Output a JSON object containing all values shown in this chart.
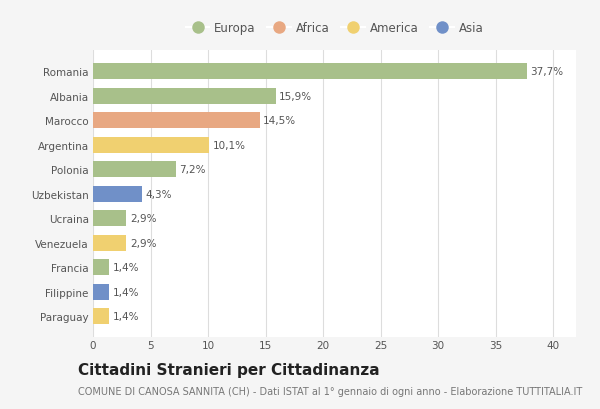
{
  "categories": [
    "Romania",
    "Albania",
    "Marocco",
    "Argentina",
    "Polonia",
    "Uzbekistan",
    "Ucraina",
    "Venezuela",
    "Francia",
    "Filippine",
    "Paraguay"
  ],
  "values": [
    37.7,
    15.9,
    14.5,
    10.1,
    7.2,
    4.3,
    2.9,
    2.9,
    1.4,
    1.4,
    1.4
  ],
  "labels": [
    "37,7%",
    "15,9%",
    "14,5%",
    "10,1%",
    "7,2%",
    "4,3%",
    "2,9%",
    "2,9%",
    "1,4%",
    "1,4%",
    "1,4%"
  ],
  "continents": [
    "Europa",
    "Europa",
    "Africa",
    "America",
    "Europa",
    "Asia",
    "Europa",
    "America",
    "Europa",
    "Asia",
    "America"
  ],
  "colors": {
    "Europa": "#a8c08a",
    "Africa": "#e8a882",
    "America": "#f0d070",
    "Asia": "#7090c8"
  },
  "legend_order": [
    "Europa",
    "Africa",
    "America",
    "Asia"
  ],
  "xlim": [
    0,
    42
  ],
  "xticks": [
    0,
    5,
    10,
    15,
    20,
    25,
    30,
    35,
    40
  ],
  "title": "Cittadini Stranieri per Cittadinanza",
  "subtitle": "COMUNE DI CANOSA SANNITA (CH) - Dati ISTAT al 1° gennaio di ogni anno - Elaborazione TUTTITALIA.IT",
  "background_color": "#f5f5f5",
  "plot_background": "#ffffff",
  "grid_color": "#dddddd",
  "title_fontsize": 11,
  "subtitle_fontsize": 7,
  "label_fontsize": 7.5,
  "tick_fontsize": 7.5,
  "legend_fontsize": 8.5
}
